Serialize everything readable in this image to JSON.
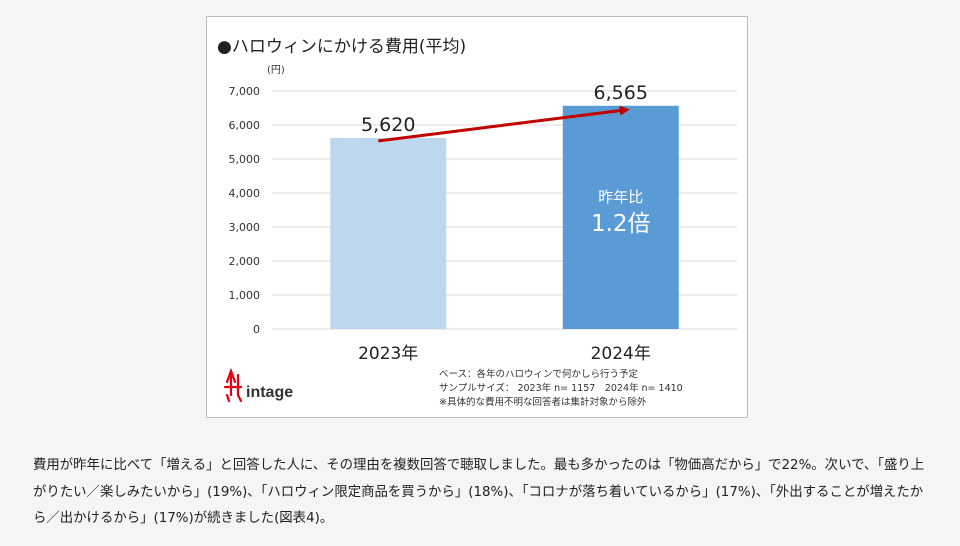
{
  "chart_data": {
    "type": "bar",
    "title": "●ハロウィンにかける費用(平均)",
    "ylabel": "(円)",
    "xlabel": "",
    "ylim": [
      0,
      7000
    ],
    "yticks": [
      "0",
      "1,000",
      "2,000",
      "3,000",
      "4,000",
      "5,000",
      "6,000",
      "7,000"
    ],
    "categories": [
      "2023年",
      "2024年"
    ],
    "values": [
      5620,
      6565
    ],
    "value_labels": [
      "5,620",
      "6,565"
    ],
    "bar_colors": [
      "#bdd7ee",
      "#5b9bd5"
    ],
    "arrow_color": "#c00000",
    "annotation_line1": "昨年比",
    "annotation_line2": "1.2倍",
    "footnotes": [
      "ベース：各年のハロウィンで何かしら行う予定",
      "サンプルサイズ： 2023年 n= 1157　2024年 n= 1410",
      "※具体的な費用不明な回答者は集計対象から除外"
    ]
  },
  "brand": {
    "logo_text": "intage",
    "logo_color": "#e60012"
  },
  "article": {
    "text": "費用が昨年に比べて「増える」と回答した人に、その理由を複数回答で聴取しました。最も多かったのは「物価高だから」で22%。次いで、「盛り上がりたい／楽しみたいから」(19%)、「ハロウィン限定商品を買うから」(18%)、「コロナが落ち着いているから」(17%)、「外出することが増えたから／出かけるから」(17%)が続きました(図表4)。"
  }
}
